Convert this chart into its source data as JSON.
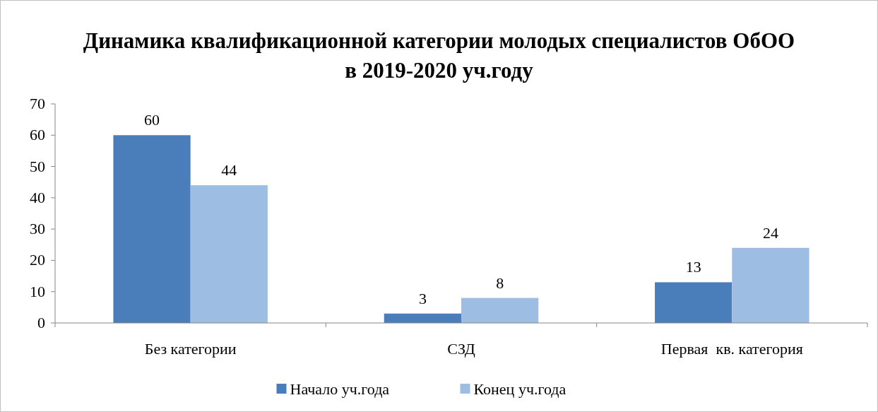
{
  "chart_data": {
    "type": "bar",
    "title": "Динамика квалификационной категории молодых специалистов ОбОО в 2019-2020 уч.году",
    "categories": [
      "Без категории",
      "СЗД",
      "Первая  кв. категория"
    ],
    "series": [
      {
        "name": "Начало уч.года",
        "color": "#4a7ebb",
        "values": [
          60,
          3,
          13
        ]
      },
      {
        "name": "Конец уч.года",
        "color": "#9dbde3",
        "values": [
          44,
          8,
          24
        ]
      }
    ],
    "ylim": [
      0,
      70
    ],
    "yticks": [
      0,
      10,
      20,
      30,
      40,
      50,
      60,
      70
    ],
    "data_labels": true,
    "legend": "bottom",
    "grid": false
  }
}
